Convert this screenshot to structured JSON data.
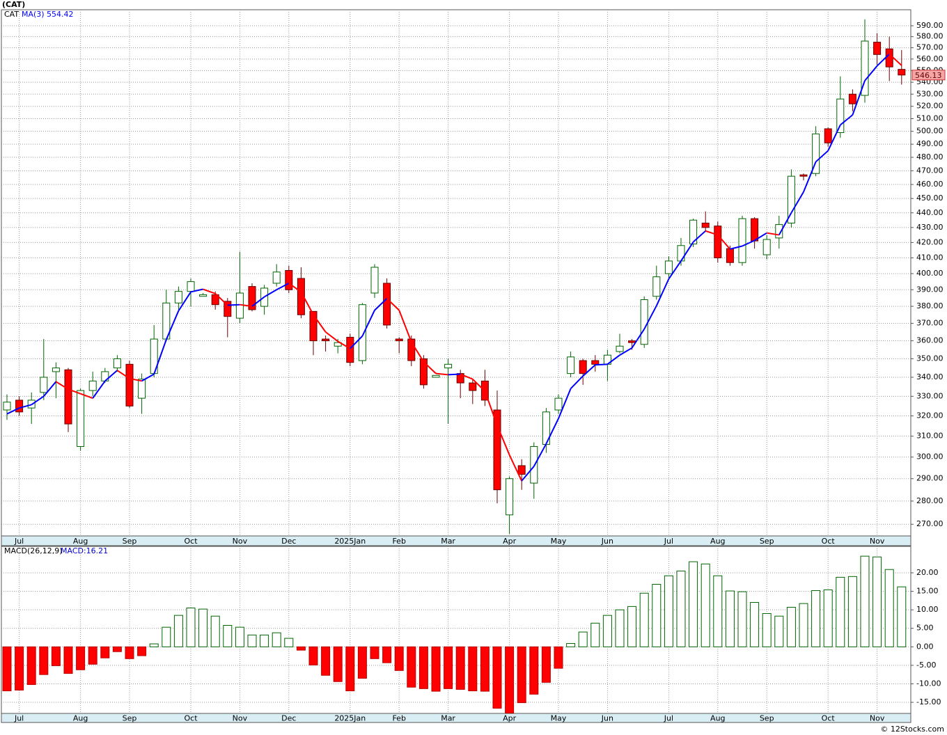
{
  "title": "(CAT)",
  "footer": "© 12Stocks.com",
  "chart_data": [
    {
      "type": "candlestick",
      "label": "CAT",
      "log_scale": true,
      "grid": true,
      "up_color": "#006400",
      "down_color": "#ff0000",
      "last_color": "#f4a6a6",
      "categories": [
        null,
        "Jul",
        null,
        null,
        null,
        null,
        "Aug",
        null,
        null,
        null,
        "Sep",
        null,
        null,
        null,
        null,
        "Oct",
        null,
        null,
        null,
        "Nov",
        null,
        null,
        null,
        "Dec",
        null,
        null,
        null,
        null,
        "2025Jan",
        null,
        null,
        null,
        "Feb",
        null,
        null,
        null,
        "Mar",
        null,
        null,
        null,
        null,
        "Apr",
        null,
        null,
        null,
        "May",
        null,
        null,
        null,
        "Jun",
        null,
        null,
        null,
        null,
        "Jul",
        null,
        null,
        null,
        "Aug",
        null,
        null,
        null,
        "Sep",
        null,
        null,
        null,
        null,
        "Oct",
        null,
        null,
        null,
        "Nov",
        null,
        null
      ],
      "open": [
        323,
        328,
        324,
        332,
        343,
        344,
        305,
        333,
        338,
        345,
        347,
        329,
        342,
        361,
        382,
        389,
        386,
        387,
        383,
        373,
        392,
        380,
        394,
        402,
        397,
        377,
        361,
        357,
        362,
        349,
        388,
        394,
        361,
        361,
        350,
        340,
        345,
        342,
        337,
        338,
        323,
        274,
        296,
        288,
        306,
        323,
        342,
        349,
        349,
        347,
        354,
        360,
        358,
        386,
        400,
        408,
        419,
        433,
        431,
        416,
        407,
        436,
        412,
        423,
        433,
        467,
        468,
        502,
        499,
        530,
        529,
        575,
        569,
        551
      ],
      "high": [
        331,
        330,
        332,
        361,
        348,
        345,
        334,
        343,
        345,
        352,
        349,
        342,
        369,
        390,
        392,
        397,
        388,
        389,
        385,
        414,
        394,
        393,
        406,
        405,
        404,
        377,
        363,
        361,
        364,
        382,
        406,
        397,
        362,
        363,
        352,
        341,
        350,
        344,
        339,
        344,
        333,
        291,
        299,
        307,
        324,
        331,
        354,
        350,
        352,
        355,
        364,
        361,
        386,
        405,
        411,
        423,
        436,
        441,
        434,
        418,
        438,
        437,
        425,
        438,
        471,
        468,
        504,
        503,
        545,
        534,
        596,
        583,
        580,
        568
      ],
      "low": [
        318,
        320,
        316,
        328,
        329,
        312,
        303,
        330,
        337,
        343,
        324,
        321,
        340,
        361,
        378,
        380,
        386,
        378,
        362,
        370,
        377,
        375,
        392,
        388,
        373,
        352,
        354,
        353,
        346,
        347,
        385,
        367,
        353,
        346,
        334,
        340,
        316,
        329,
        326,
        325,
        279,
        266,
        285,
        281,
        302,
        321,
        340,
        336,
        343,
        338,
        353,
        355,
        356,
        384,
        397,
        405,
        417,
        427,
        407,
        405,
        405,
        416,
        409,
        416,
        430,
        463,
        466,
        488,
        495,
        516,
        523,
        555,
        541,
        538
      ],
      "close": [
        327,
        322,
        328,
        340,
        345,
        316,
        333,
        338,
        343,
        350,
        325,
        339,
        361,
        382,
        389,
        395,
        387,
        381,
        374,
        388,
        378,
        391,
        401,
        390,
        375,
        360,
        360,
        359,
        348,
        381,
        404,
        369,
        360,
        349,
        336,
        341,
        347,
        337,
        333,
        328,
        285,
        290,
        292,
        305,
        322,
        329,
        351,
        342,
        347,
        352,
        357,
        359,
        384,
        398,
        408,
        418,
        435,
        430,
        410,
        407,
        436,
        421,
        422,
        432,
        466,
        466,
        498,
        491,
        526,
        522,
        576,
        564,
        553.13,
        546.13
      ],
      "series": [
        {
          "name": "MA(3)",
          "color": "#0000ff",
          "down_color": "#ff0000",
          "values": [
            321,
            324,
            325.67,
            330,
            337.67,
            333.67,
            331.33,
            329,
            338,
            343.67,
            339.33,
            338,
            341.67,
            360.67,
            377.33,
            388.67,
            390.33,
            387.67,
            380.67,
            381,
            380,
            385.67,
            390,
            394,
            388.67,
            375,
            365,
            359.67,
            355.67,
            362.67,
            377.67,
            384.67,
            377.67,
            359.33,
            348.33,
            342,
            341.33,
            341.67,
            339,
            332.67,
            315.33,
            301,
            289,
            295.67,
            306.33,
            318.67,
            334,
            340.67,
            346.67,
            347,
            352,
            356,
            366.67,
            380.33,
            396.67,
            408,
            420.33,
            427.67,
            425,
            415.67,
            417.67,
            421.33,
            426.33,
            425,
            440,
            454.67,
            476.67,
            485,
            505,
            513,
            541.33,
            554,
            564.38,
            554.42
          ]
        }
      ],
      "ylim": [
        265.1,
        605
      ],
      "yticks": [
        {
          "value": 270,
          "label": "270.00"
        },
        {
          "value": 280,
          "label": "280.00"
        },
        {
          "value": 290,
          "label": "290.00"
        },
        {
          "value": 300,
          "label": "300.00"
        },
        {
          "value": 310,
          "label": "310.00"
        },
        {
          "value": 320,
          "label": "320.00"
        },
        {
          "value": 330,
          "label": "330.00"
        },
        {
          "value": 340,
          "label": "340.00"
        },
        {
          "value": 350,
          "label": "350.00"
        },
        {
          "value": 360,
          "label": "360.00"
        },
        {
          "value": 370,
          "label": "370.00"
        },
        {
          "value": 380,
          "label": "380.00"
        },
        {
          "value": 390,
          "label": "390.00"
        },
        {
          "value": 400,
          "label": "400.00"
        },
        {
          "value": 410,
          "label": "410.00"
        },
        {
          "value": 420,
          "label": "420.00"
        },
        {
          "value": 430,
          "label": "430.00"
        },
        {
          "value": 440,
          "label": "440.00"
        },
        {
          "value": 450,
          "label": "450.00"
        },
        {
          "value": 460,
          "label": "460.00"
        },
        {
          "value": 470,
          "label": "470.00"
        },
        {
          "value": 480,
          "label": "480.00"
        },
        {
          "value": 490,
          "label": "490.00"
        },
        {
          "value": 500,
          "label": "500.00"
        },
        {
          "value": 510,
          "label": "510.00"
        },
        {
          "value": 520,
          "label": "520.00"
        },
        {
          "value": 530,
          "label": "530.00"
        },
        {
          "value": 540,
          "label": "540.00"
        },
        {
          "value": 550,
          "label": "550.00"
        },
        {
          "value": 560,
          "label": "560.00"
        },
        {
          "value": 570,
          "label": "570.00"
        },
        {
          "value": 580,
          "label": "580.00"
        },
        {
          "value": 590,
          "label": "590.00"
        }
      ]
    },
    {
      "type": "bar",
      "label": "MACD(26,12,9)",
      "last_value_label": "MACD:16.21",
      "grid": true,
      "categories": [
        null,
        "Jul",
        null,
        null,
        null,
        null,
        "Aug",
        null,
        null,
        null,
        "Sep",
        null,
        null,
        null,
        null,
        "Oct",
        null,
        null,
        null,
        "Nov",
        null,
        null,
        null,
        "Dec",
        null,
        null,
        null,
        null,
        "2025Jan",
        null,
        null,
        null,
        "Feb",
        null,
        null,
        null,
        "Mar",
        null,
        null,
        null,
        null,
        "Apr",
        null,
        null,
        null,
        "May",
        null,
        null,
        null,
        "Jun",
        null,
        null,
        null,
        null,
        "Jul",
        null,
        null,
        null,
        "Aug",
        null,
        null,
        null,
        "Sep",
        null,
        null,
        null,
        null,
        "Oct",
        null,
        null,
        null,
        "Nov",
        null,
        null
      ],
      "series": [
        {
          "name": "MACD",
          "color": "#006400",
          "down_color": "#ff0000",
          "values": [
            -11.9,
            -11.7,
            -10.2,
            -7.5,
            -5.1,
            -7.2,
            -6.2,
            -4.7,
            -3.0,
            -1.3,
            -3.2,
            -2.4,
            0.8,
            5.3,
            8.5,
            10.5,
            10.2,
            8.3,
            5.8,
            5.3,
            3.2,
            3.2,
            3.8,
            2.3,
            -0.9,
            -4.9,
            -7.7,
            -9.4,
            -11.9,
            -8.5,
            -3.2,
            -4.3,
            -6.4,
            -10.9,
            -11.3,
            -12.0,
            -11.3,
            -11.5,
            -11.9,
            -12.0,
            -16.6,
            -17.9,
            -15.1,
            -12.8,
            -9.6,
            -5.8,
            0.9,
            4.0,
            6.4,
            8.5,
            10.0,
            10.9,
            14.5,
            16.9,
            19.2,
            20.5,
            23.0,
            22.4,
            19.2,
            15.1,
            14.9,
            12.0,
            9.0,
            8.3,
            10.7,
            11.7,
            15.2,
            15.4,
            18.8,
            19.0,
            24.5,
            24.3,
            20.9,
            16.21
          ]
        }
      ],
      "ylim": [
        -18.0,
        27.15
      ],
      "yticks": [
        {
          "value": -15,
          "label": "-15.00"
        },
        {
          "value": -10,
          "label": "-10.00"
        },
        {
          "value": -5,
          "label": "-5.00"
        },
        {
          "value": 0,
          "label": "0.00"
        },
        {
          "value": 5,
          "label": "5.00"
        },
        {
          "value": 10,
          "label": "10.00"
        },
        {
          "value": 15,
          "label": "15.00"
        },
        {
          "value": 20,
          "label": "20.00"
        }
      ]
    }
  ]
}
